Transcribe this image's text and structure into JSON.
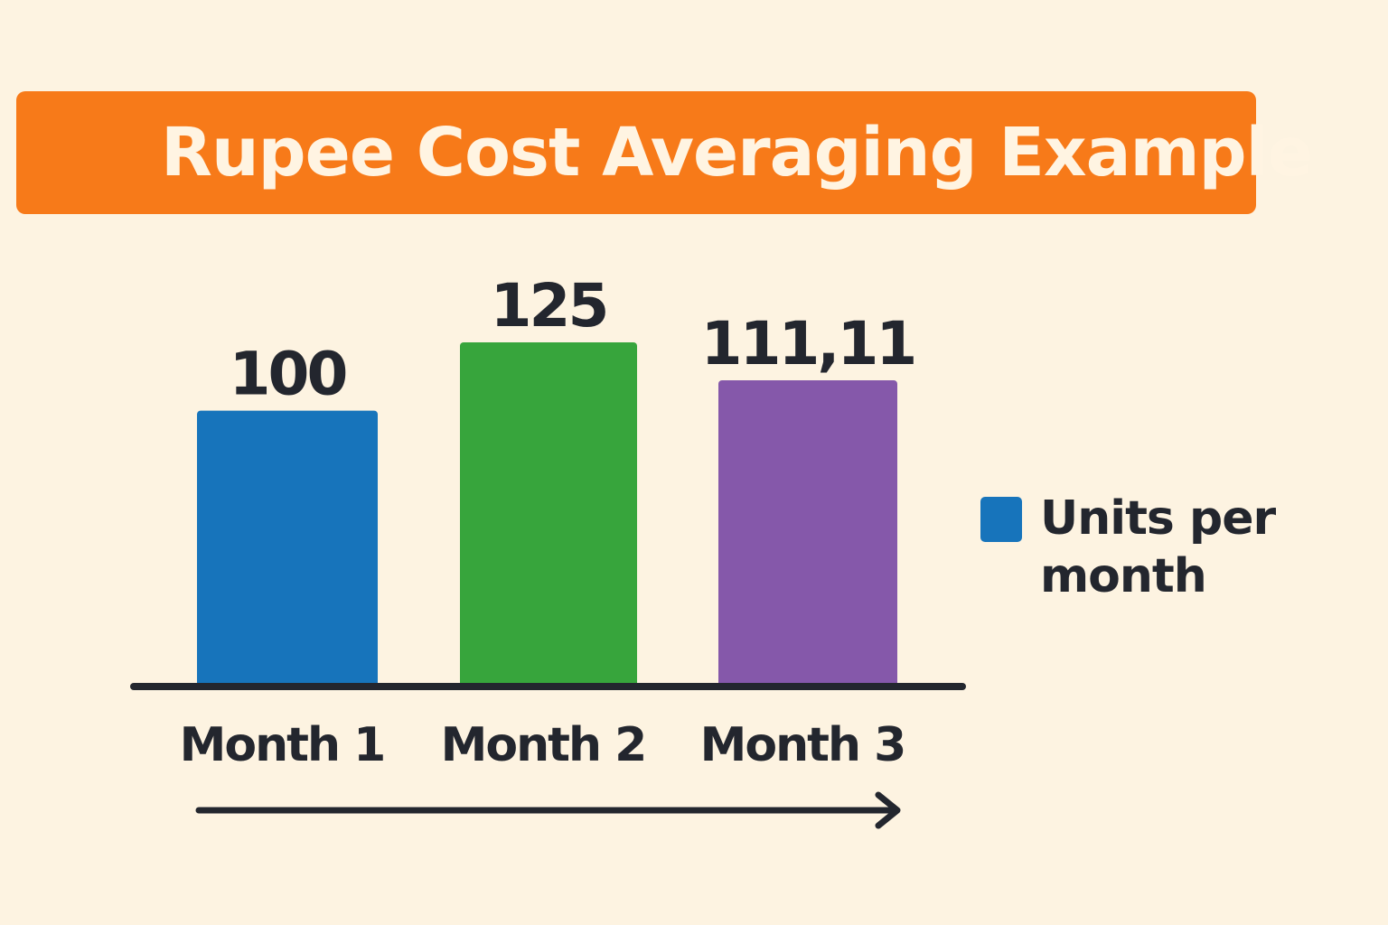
{
  "title": "Rupee Cost Averaging Example",
  "colors": {
    "background": "#fdf3e1",
    "banner": "#f77a19",
    "title_text": "#fff4e2",
    "text": "#23262e",
    "axis": "#23262e",
    "legend_swatch": "#1774bb"
  },
  "legend": {
    "label": "Units per month",
    "placement": "right"
  },
  "chart_data": {
    "type": "bar",
    "title": "Rupee Cost Averaging Example",
    "categories": [
      "Month 1",
      "Month 2",
      "Month 3"
    ],
    "values": [
      100,
      125,
      111.11
    ],
    "data_labels": [
      "100",
      "125",
      "111,11"
    ],
    "bar_colors": [
      "#1774bb",
      "#37a53c",
      "#8558aa"
    ],
    "series": [
      {
        "name": "Units per month",
        "values": [
          100,
          125,
          111.11
        ]
      }
    ],
    "xlabel": "",
    "ylabel": "",
    "ylim": [
      0,
      190
    ],
    "grid": false,
    "legend": "right",
    "time_arrow": true
  }
}
